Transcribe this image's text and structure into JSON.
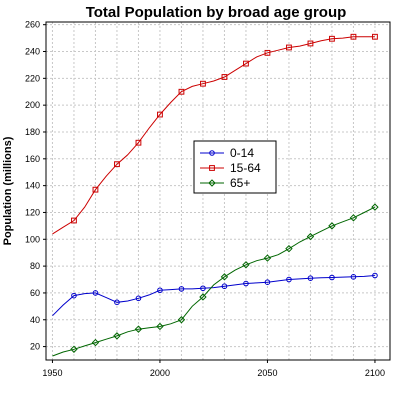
{
  "chart_data": {
    "type": "line",
    "title": "Total Population by broad age group",
    "xlabel": "",
    "ylabel": "Population (millions)",
    "xlim": [
      1947,
      2107
    ],
    "ylim": [
      10,
      262
    ],
    "xticks": [
      1950,
      2000,
      2050,
      2100
    ],
    "yticks": [
      20,
      40,
      60,
      80,
      100,
      120,
      140,
      160,
      180,
      200,
      220,
      240,
      260
    ],
    "grid": true,
    "legend_position": "center",
    "series": [
      {
        "name": "0-14",
        "color": "#0000cc",
        "marker": "circle",
        "x": [
          1950,
          1955,
          1960,
          1965,
          1970,
          1975,
          1980,
          1985,
          1990,
          1995,
          2000,
          2005,
          2010,
          2015,
          2020,
          2025,
          2030,
          2035,
          2040,
          2045,
          2050,
          2055,
          2060,
          2065,
          2070,
          2075,
          2080,
          2085,
          2090,
          2095,
          2100
        ],
        "y": [
          43,
          51,
          58,
          59.5,
          60,
          56.5,
          53,
          54,
          56,
          58.5,
          62,
          62.5,
          63,
          63,
          63.5,
          64,
          65,
          66,
          67,
          67.5,
          68,
          69,
          70,
          70.5,
          71,
          71.3,
          71.5,
          71.8,
          72,
          72.3,
          73
        ]
      },
      {
        "name": "15-64",
        "color": "#cc0000",
        "marker": "square",
        "x": [
          1950,
          1955,
          1960,
          1965,
          1970,
          1975,
          1980,
          1985,
          1990,
          1995,
          2000,
          2005,
          2010,
          2015,
          2020,
          2025,
          2030,
          2035,
          2040,
          2045,
          2050,
          2055,
          2060,
          2065,
          2070,
          2075,
          2080,
          2085,
          2090,
          2095,
          2100
        ],
        "y": [
          104,
          109,
          114,
          124,
          137,
          147,
          156,
          163,
          172,
          183,
          193,
          202,
          210,
          214,
          216,
          218,
          221,
          226,
          231,
          236,
          239,
          241,
          243,
          244,
          246,
          248,
          249.5,
          250,
          251,
          251,
          251
        ]
      },
      {
        "name": "65+",
        "color": "#006600",
        "marker": "diamond",
        "x": [
          1950,
          1955,
          1960,
          1965,
          1970,
          1975,
          1980,
          1985,
          1990,
          1995,
          2000,
          2005,
          2010,
          2015,
          2020,
          2025,
          2030,
          2035,
          2040,
          2045,
          2050,
          2055,
          2060,
          2065,
          2070,
          2075,
          2080,
          2085,
          2090,
          2095,
          2100
        ],
        "y": [
          13,
          16,
          18,
          20.5,
          23,
          25.5,
          28,
          31,
          33,
          34,
          35,
          37,
          40,
          50,
          57,
          66,
          72,
          77,
          81,
          84,
          86,
          88.5,
          93,
          98,
          102,
          106,
          110,
          113,
          116,
          120,
          124
        ]
      }
    ]
  }
}
